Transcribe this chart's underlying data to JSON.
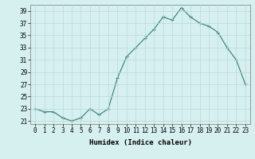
{
  "x": [
    0,
    1,
    2,
    3,
    4,
    5,
    6,
    7,
    8,
    9,
    10,
    11,
    12,
    13,
    14,
    15,
    16,
    17,
    18,
    19,
    20,
    21,
    22,
    23
  ],
  "y": [
    23,
    22.5,
    22.5,
    21.5,
    21,
    21.5,
    23,
    22,
    23,
    28,
    31.5,
    33,
    34.5,
    36,
    38,
    37.5,
    39.5,
    38,
    37,
    36.5,
    35.5,
    33,
    31,
    27
  ],
  "line_color": "#2e7d6e",
  "marker": "+",
  "marker_size": 3,
  "bg_color": "#d6f0f0",
  "grid_color": "#b8d8d8",
  "xlabel": "Humidex (Indice chaleur)",
  "xlim": [
    -0.5,
    23.5
  ],
  "ylim": [
    20.5,
    40
  ],
  "yticks": [
    21,
    23,
    25,
    27,
    29,
    31,
    33,
    35,
    37,
    39
  ],
  "xticks": [
    0,
    1,
    2,
    3,
    4,
    5,
    6,
    7,
    8,
    9,
    10,
    11,
    12,
    13,
    14,
    15,
    16,
    17,
    18,
    19,
    20,
    21,
    22,
    23
  ],
  "xtick_labels": [
    "0",
    "1",
    "2",
    "3",
    "4",
    "5",
    "6",
    "7",
    "8",
    "9",
    "10",
    "11",
    "12",
    "13",
    "14",
    "15",
    "16",
    "17",
    "18",
    "19",
    "20",
    "21",
    "22",
    "23"
  ],
  "tick_fontsize": 5.5,
  "xlabel_fontsize": 6.5
}
